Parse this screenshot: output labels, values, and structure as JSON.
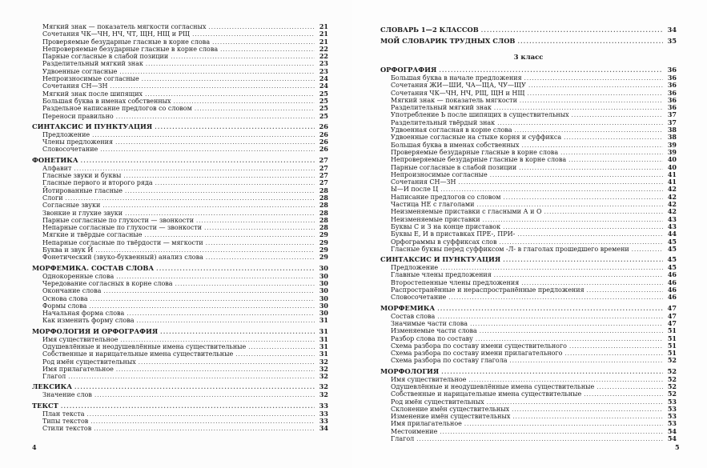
{
  "left_page": {
    "page_number": "4",
    "entries": [
      {
        "level": "sub",
        "title": "Мягкий знак — показатель мягкости согласных",
        "page": "21"
      },
      {
        "level": "sub",
        "title": "Сочетания ЧК—ЧН, НЧ, ЧТ, ЩН, НЩ и РЩ",
        "page": "21"
      },
      {
        "level": "sub",
        "title": "Проверяемые безударные гласные в корне слова",
        "page": "21"
      },
      {
        "level": "sub",
        "title": "Непроверяемые безударные гласные в корне слова",
        "page": "22"
      },
      {
        "level": "sub",
        "title": "Парные согласные в слабой позиции",
        "page": "22"
      },
      {
        "level": "sub",
        "title": "Разделительный мягкий знак",
        "page": "23"
      },
      {
        "level": "sub",
        "title": "Удвоенные согласные",
        "page": "23"
      },
      {
        "level": "sub",
        "title": "Непроизносимые согласные",
        "page": "24"
      },
      {
        "level": "sub",
        "title": "Сочетания СН—ЗН",
        "page": "24"
      },
      {
        "level": "sub",
        "title": "Мягкий знак после шипящих",
        "page": "25"
      },
      {
        "level": "sub",
        "title": "Большая буква в именах собственных",
        "page": "25"
      },
      {
        "level": "sub",
        "title": "Раздельное написание предлогов со словом",
        "page": "25"
      },
      {
        "level": "sub",
        "title": "Переноси правильно",
        "page": "25"
      },
      {
        "level": "sec",
        "title": "СИНТАКСИС И ПУНКТУАЦИЯ",
        "page": "26"
      },
      {
        "level": "sub",
        "title": "Предложение",
        "page": "26"
      },
      {
        "level": "sub",
        "title": "Члены предложения",
        "page": "26"
      },
      {
        "level": "sub",
        "title": "Словосочетание",
        "page": "26"
      },
      {
        "level": "sec",
        "title": "ФОНЕТИКА",
        "page": "27"
      },
      {
        "level": "sub",
        "title": "Алфавит",
        "page": "27"
      },
      {
        "level": "sub",
        "title": "Гласные звуки и буквы",
        "page": "27"
      },
      {
        "level": "sub",
        "title": "Гласные первого и второго ряда",
        "page": "27"
      },
      {
        "level": "sub",
        "title": "Йотированные гласные",
        "page": "28"
      },
      {
        "level": "sub",
        "title": "Слоги",
        "page": "28"
      },
      {
        "level": "sub",
        "title": "Согласные звуки",
        "page": "28"
      },
      {
        "level": "sub",
        "title": "Звонкие и глухие звуки",
        "page": "28"
      },
      {
        "level": "sub",
        "title": "Парные согласные по глухости — звонкости",
        "page": "28"
      },
      {
        "level": "sub",
        "title": "Непарные согласные по глухости — звонкости",
        "page": "28"
      },
      {
        "level": "sub",
        "title": "Мягкие и твёрдые согласные",
        "page": "29"
      },
      {
        "level": "sub",
        "title": "Непарные согласные по твёрдости — мягкости",
        "page": "29"
      },
      {
        "level": "sub",
        "title": "Буква и звук Й",
        "page": "29"
      },
      {
        "level": "sub",
        "title": "Фонетический (звуко-буквенный) анализ слова",
        "page": "29"
      },
      {
        "level": "sec",
        "title": "МОРФЕМИКА. СОСТАВ СЛОВА",
        "page": "30"
      },
      {
        "level": "sub",
        "title": "Однокоренные слова",
        "page": "30"
      },
      {
        "level": "sub",
        "title": "Чередование согласных в корне слова",
        "page": "30"
      },
      {
        "level": "sub",
        "title": "Окончание слова",
        "page": "30"
      },
      {
        "level": "sub",
        "title": "Основа слова",
        "page": "30"
      },
      {
        "level": "sub",
        "title": "Формы слова",
        "page": "30"
      },
      {
        "level": "sub",
        "title": "Начальная форма слова",
        "page": "30"
      },
      {
        "level": "sub",
        "title": "Как изменить форму слова",
        "page": "31"
      },
      {
        "level": "sec",
        "title": "МОРФОЛОГИЯ И ОРФОГРАФИЯ",
        "page": "31"
      },
      {
        "level": "sub",
        "title": "Имя существительное",
        "page": "31"
      },
      {
        "level": "sub",
        "title": "Одушевлённые и неодушевлённые имена существительные",
        "page": "31"
      },
      {
        "level": "sub",
        "title": "Собственные и нарицательные имена существительные",
        "page": "31"
      },
      {
        "level": "sub",
        "title": "Род имён существительных",
        "page": "32"
      },
      {
        "level": "sub",
        "title": "Имя прилагательное",
        "page": "32"
      },
      {
        "level": "sub",
        "title": "Глагол",
        "page": "32"
      },
      {
        "level": "sec",
        "title": "ЛЕКСИКА",
        "page": "32"
      },
      {
        "level": "sub",
        "title": "Значение слов",
        "page": "32"
      },
      {
        "level": "sec",
        "title": "ТЕКСТ",
        "page": "33"
      },
      {
        "level": "sub",
        "title": "План текста",
        "page": "33"
      },
      {
        "level": "sub",
        "title": "Типы текстов",
        "page": "33"
      },
      {
        "level": "sub",
        "title": "Стили текстов",
        "page": "34"
      }
    ]
  },
  "right_page": {
    "page_number": "5",
    "entries": [
      {
        "level": "sec",
        "title": "СЛОВАРЬ 1—2 КЛАССОВ",
        "page": "34"
      },
      {
        "level": "sec",
        "title": "МОЙ СЛОВАРИК ТРУДНЫХ СЛОВ",
        "page": "35"
      },
      {
        "level": "grade",
        "title": "3 класс"
      },
      {
        "level": "sec",
        "title": "ОРФОГРАФИЯ",
        "page": "36"
      },
      {
        "level": "sub",
        "title": "Большая буква в начале предложения",
        "page": "36"
      },
      {
        "level": "sub",
        "title": "Сочетания ЖИ—ШИ, ЧА—ЩА, ЧУ—ЩУ",
        "page": "36"
      },
      {
        "level": "sub",
        "title": "Сочетания ЧК—ЧН, НЧ, РЩ, ЩН и НЩ",
        "page": "36"
      },
      {
        "level": "sub",
        "title": "Мягкий знак — показатель мягкости",
        "page": "36"
      },
      {
        "level": "sub",
        "title": "Разделительный мягкий знак",
        "page": "36"
      },
      {
        "level": "sub",
        "title": "Употребление Ь после шипящих в существительных",
        "page": "37"
      },
      {
        "level": "sub",
        "title": "Разделительный твёрдый знак",
        "page": "37"
      },
      {
        "level": "sub",
        "title": "Удвоенная согласная в корне слова",
        "page": "38"
      },
      {
        "level": "sub",
        "title": "Удвоенные согласные на стыке корня и суффикса",
        "page": "38"
      },
      {
        "level": "sub",
        "title": "Большая буква в именах собственных",
        "page": "39"
      },
      {
        "level": "sub",
        "title": "Проверяемые безударные гласные в корне слова",
        "page": "39"
      },
      {
        "level": "sub",
        "title": "Непроверяемые безударные гласные в корне слова",
        "page": "40"
      },
      {
        "level": "sub",
        "title": "Парные согласные в слабой позиции",
        "page": "40"
      },
      {
        "level": "sub",
        "title": "Непроизносимые согласные",
        "page": "41"
      },
      {
        "level": "sub",
        "title": "Сочетания СН—ЗН",
        "page": "41"
      },
      {
        "level": "sub",
        "title": "Ы—И после Ц",
        "page": "42"
      },
      {
        "level": "sub",
        "title": "Написание предлогов со словом",
        "page": "42"
      },
      {
        "level": "sub",
        "title": "Частица НЕ с глаголами",
        "page": "42"
      },
      {
        "level": "sub",
        "title": "Неизменяемые приставки с гласными А и О",
        "page": "42"
      },
      {
        "level": "sub",
        "title": "Неизменяемые приставки",
        "page": "43"
      },
      {
        "level": "sub",
        "title": "Буквы С и З на конце приставок",
        "page": "43"
      },
      {
        "level": "sub",
        "title": "Буквы Е, И в приставках ПРЕ-, ПРИ-",
        "page": "44"
      },
      {
        "level": "sub",
        "title": "Орфограммы в суффиксах слов",
        "page": "45"
      },
      {
        "level": "sub",
        "title": "Гласные буквы перед суффиксом -Л- в глаголах прошедшего времени",
        "page": "45"
      },
      {
        "level": "sec",
        "title": "СИНТАКСИС И ПУНКТУАЦИЯ",
        "page": "45"
      },
      {
        "level": "sub",
        "title": "Предложение",
        "page": "45"
      },
      {
        "level": "sub",
        "title": "Главные члены предложения",
        "page": "46"
      },
      {
        "level": "sub",
        "title": "Второстепенные члены предложения",
        "page": "46"
      },
      {
        "level": "sub",
        "title": "Распространённые и нераспространённые предложения",
        "page": "46"
      },
      {
        "level": "sub",
        "title": "Словосочетание",
        "page": "46"
      },
      {
        "level": "sec",
        "title": "МОРФЕМИКА",
        "page": "47"
      },
      {
        "level": "sub",
        "title": "Состав слова",
        "page": "47"
      },
      {
        "level": "sub",
        "title": "Значимые части слова",
        "page": "47"
      },
      {
        "level": "sub",
        "title": "Изменяемые части слова",
        "page": "51"
      },
      {
        "level": "sub",
        "title": "Разбор слова по составу",
        "page": "51"
      },
      {
        "level": "sub",
        "title": "Схема разбора по составу имени существительного",
        "page": "51"
      },
      {
        "level": "sub",
        "title": "Схема разбора по составу имени прилагательного",
        "page": "51"
      },
      {
        "level": "sub",
        "title": "Схема разбора по составу глагола",
        "page": "52"
      },
      {
        "level": "sec",
        "title": "МОРФОЛОГИЯ",
        "page": "52"
      },
      {
        "level": "sub",
        "title": "Имя существительное",
        "page": "52"
      },
      {
        "level": "sub",
        "title": "Одушевлённые и неодушевлённые имена существительные",
        "page": "52"
      },
      {
        "level": "sub",
        "title": "Собственные и нарицательные имена существительные",
        "page": "52"
      },
      {
        "level": "sub",
        "title": "Род имён существительных",
        "page": "53"
      },
      {
        "level": "sub",
        "title": "Склонение имён существительных",
        "page": "53"
      },
      {
        "level": "sub",
        "title": "Изменение имён существительных",
        "page": "53"
      },
      {
        "level": "sub",
        "title": "Имя прилагательное",
        "page": "53"
      },
      {
        "level": "sub",
        "title": "Местоимение",
        "page": "54"
      },
      {
        "level": "sub",
        "title": "Глагол",
        "page": "54"
      }
    ]
  }
}
